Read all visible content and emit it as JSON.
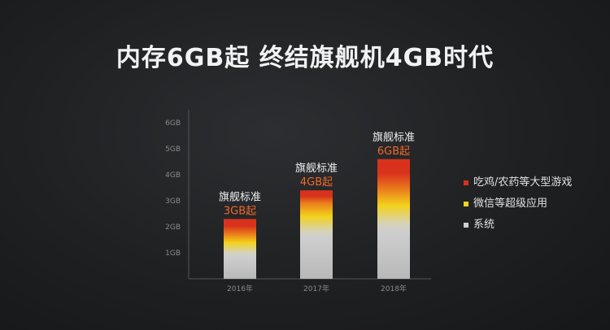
{
  "title": "内存6GB起 终结旗舰机4GB时代",
  "colors": {
    "system": "#cfcfcf",
    "super_apps": "#f3d21c",
    "games": "#d9321c",
    "annotation_highlight": "#ef6a2a",
    "annotation_text": "#f0f0f0",
    "legend_text": "#e0e0e0",
    "axis_text": "#8a8a8a"
  },
  "chart_data": {
    "type": "bar",
    "stacked": true,
    "categories": [
      "2016年",
      "2017年",
      "2018年"
    ],
    "ylim": [
      0,
      6
    ],
    "yticks": [
      "1GB",
      "2GB",
      "3GB",
      "4GB",
      "5GB",
      "6GB"
    ],
    "series": [
      {
        "name": "系统",
        "color_key": "system",
        "values": [
          1.0,
          1.8,
          2.1
        ]
      },
      {
        "name": "微信等超级应用",
        "color_key": "super_apps",
        "values": [
          0.7,
          1.1,
          1.3
        ]
      },
      {
        "name": "吃鸡/农药等大型游戏",
        "color_key": "games",
        "values": [
          0.6,
          0.5,
          1.2
        ]
      }
    ],
    "legend_order": [
      2,
      1,
      0
    ],
    "annotations": [
      {
        "line1": "旗舰标准",
        "line2": "3GB起"
      },
      {
        "line1": "旗舰标准",
        "line2": "4GB起"
      },
      {
        "line1": "旗舰标准",
        "line2": "6GB起"
      }
    ],
    "grid": false,
    "legend_position": "right"
  }
}
